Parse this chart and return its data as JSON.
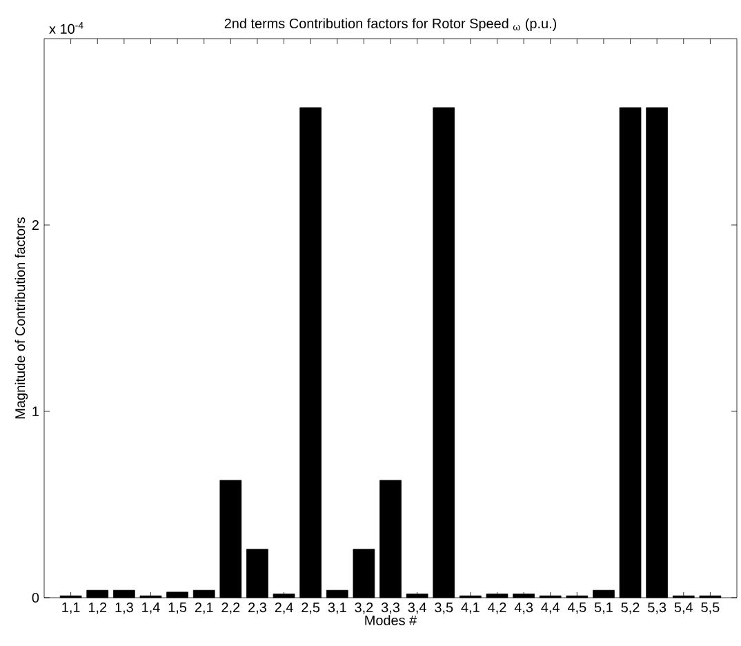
{
  "chart_data": {
    "type": "bar",
    "title": "2nd terms Contribution factors for Rotor Speed $_{ω}$ (p.u.)",
    "xlabel": "Modes #",
    "ylabel": "Magnitude of Contribution factors",
    "annotations": [
      "x 10$^{-4}$"
    ],
    "categories": [
      "1,1",
      "1,2",
      "1,3",
      "1,4",
      "1,5",
      "2,1",
      "2,2",
      "2,3",
      "2,4",
      "2,5",
      "3,1",
      "3,2",
      "3,3",
      "3,4",
      "3,5",
      "4,1",
      "4,2",
      "4,3",
      "4,4",
      "4,5",
      "5,1",
      "5,2",
      "5,3",
      "5,4",
      "5,5"
    ],
    "values": [
      0.01,
      0.04,
      0.04,
      0.01,
      0.03,
      0.04,
      0.63,
      0.26,
      0.02,
      2.63,
      0.04,
      0.26,
      0.63,
      0.02,
      2.63,
      0.01,
      0.02,
      0.02,
      0.01,
      0.01,
      0.04,
      2.63,
      2.63,
      0.01,
      0.01
    ],
    "color": "#000000",
    "ylim": [
      0,
      3
    ],
    "yticks": [
      0,
      1,
      2
    ],
    "grid": false
  }
}
